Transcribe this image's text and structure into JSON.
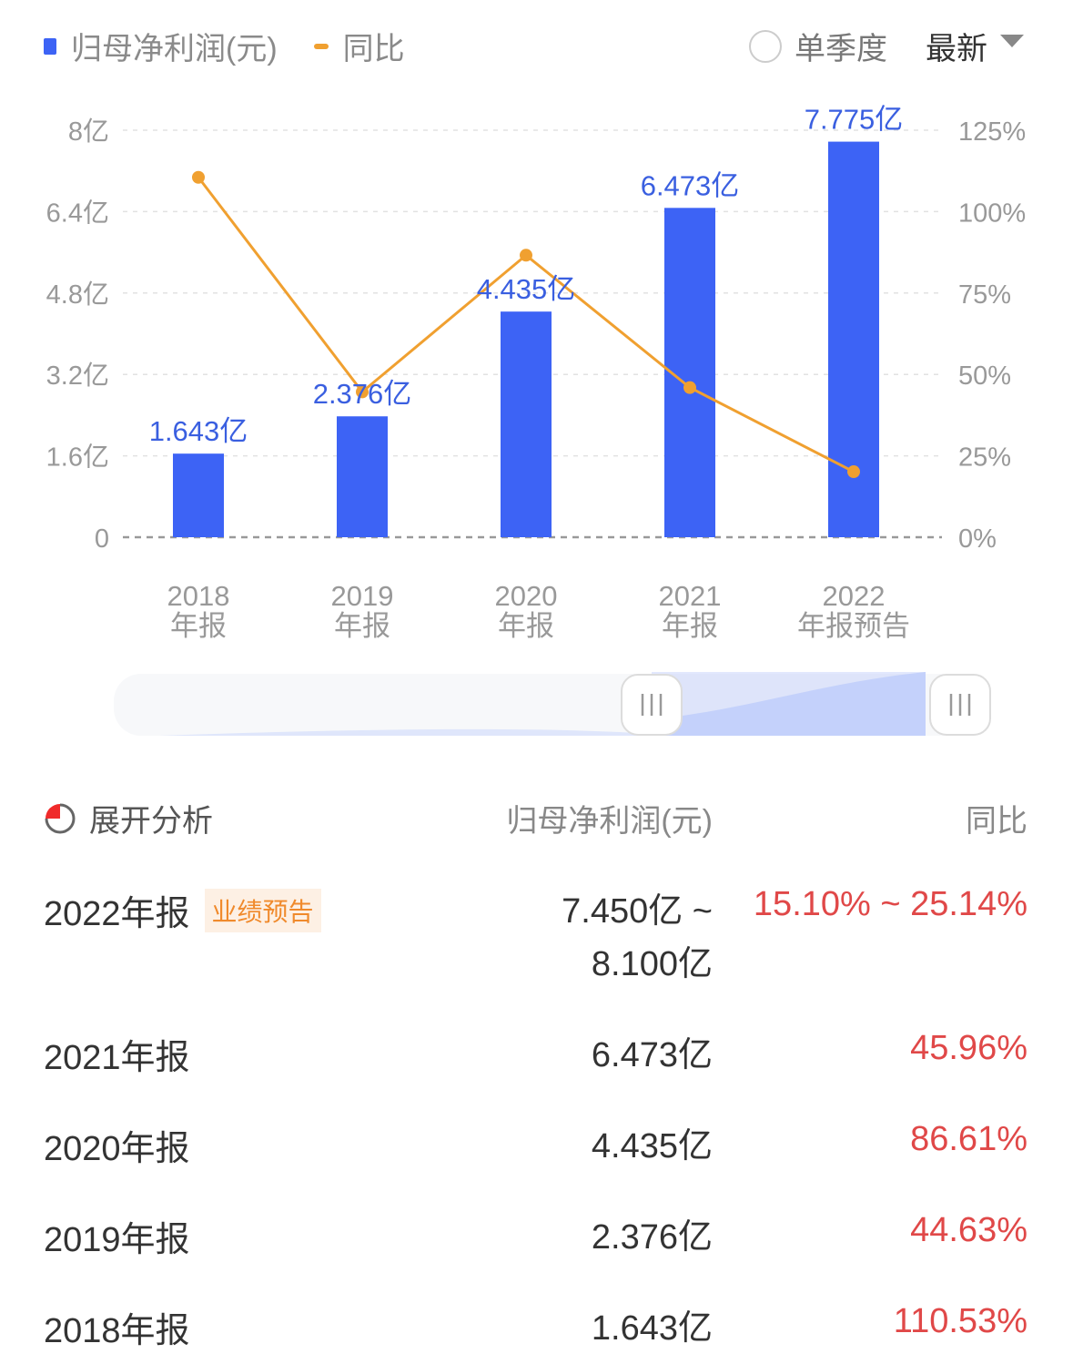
{
  "legend": {
    "bar_label": "归母净利润(元)",
    "line_label": "同比"
  },
  "controls": {
    "quarter_label": "单季度",
    "period_select": "最新"
  },
  "colors": {
    "bar": "#3d63f5",
    "line": "#f0a030",
    "bar_label": "#3a5fe0",
    "positive": "#e04848",
    "badge": "#f08a2c"
  },
  "chart_data": {
    "type": "bar+line",
    "categories": [
      [
        "2018",
        "年报"
      ],
      [
        "2019",
        "年报"
      ],
      [
        "2020",
        "年报"
      ],
      [
        "2021",
        "年报"
      ],
      [
        "2022",
        "年报预告"
      ]
    ],
    "series": [
      {
        "name": "归母净利润(元)",
        "type": "bar",
        "axis": "left",
        "values": [
          1.643,
          2.376,
          4.435,
          6.473,
          7.775
        ],
        "labels": [
          "1.643亿",
          "2.376亿",
          "4.435亿",
          "6.473亿",
          "7.775亿"
        ]
      },
      {
        "name": "同比",
        "type": "line",
        "axis": "right",
        "values": [
          110.53,
          44.63,
          86.61,
          45.96,
          20.12
        ]
      }
    ],
    "left_axis": {
      "ylim": [
        0,
        8
      ],
      "ticks": [
        0,
        1.6,
        3.2,
        4.8,
        6.4,
        8
      ],
      "tick_labels": [
        "0",
        "1.6亿",
        "3.2亿",
        "4.8亿",
        "6.4亿",
        "8亿"
      ]
    },
    "right_axis": {
      "ylim": [
        0,
        125
      ],
      "ticks": [
        0,
        25,
        50,
        75,
        100,
        125
      ],
      "tick_labels": [
        "0%",
        "25%",
        "50%",
        "75%",
        "100%",
        "125%"
      ]
    },
    "grid": true,
    "legend_position": "top-left"
  },
  "table": {
    "expand_label": "展开分析",
    "col_value": "归母净利润(元)",
    "col_yoy": "同比",
    "rows": [
      {
        "period": "2022年报",
        "badge": "业绩预告",
        "value": "7.450亿 ~",
        "value2": "8.100亿",
        "yoy": "15.10% ~ 25.14%"
      },
      {
        "period": "2021年报",
        "value": "6.473亿",
        "yoy": "45.96%"
      },
      {
        "period": "2020年报",
        "value": "4.435亿",
        "yoy": "86.61%"
      },
      {
        "period": "2019年报",
        "value": "2.376亿",
        "yoy": "44.63%"
      },
      {
        "period": "2018年报",
        "value": "1.643亿",
        "yoy": "110.53%"
      }
    ]
  }
}
